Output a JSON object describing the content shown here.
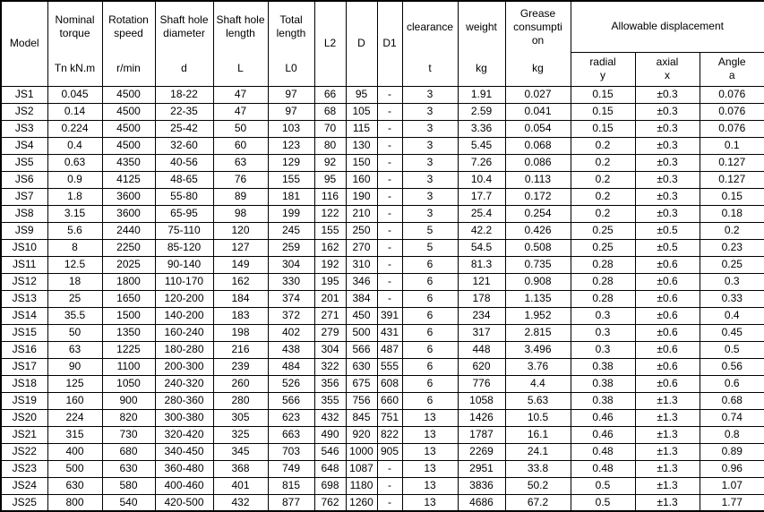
{
  "table": {
    "header": {
      "model": "Model",
      "torque": {
        "label": "Nominal\ntorque",
        "unit": "Tn kN.m"
      },
      "speed": {
        "label": "Rotation\nspeed",
        "unit": "r/min"
      },
      "diameter": {
        "label": "Shaft hole\ndiameter",
        "unit": "d"
      },
      "length": {
        "label": "Shaft hole\nlength",
        "unit": "L"
      },
      "total": {
        "label": "Total\nlength",
        "unit": "L0"
      },
      "l2": "L2",
      "d": "D",
      "d1": "D1",
      "clearance": {
        "label": "clearance",
        "unit": "t"
      },
      "weight": {
        "label": "weight",
        "unit": "kg"
      },
      "grease": {
        "label": "Grease\nconsumpti\non",
        "unit": "kg"
      },
      "displacement": "Allowable displacement",
      "radial": "radial\ny",
      "axial": "axial\nx",
      "angle": "Angle\na"
    },
    "rows": [
      [
        "JS1",
        "0.045",
        "4500",
        "18-22",
        "47",
        "97",
        "66",
        "95",
        "-",
        "3",
        "1.91",
        "0.027",
        "0.15",
        "±0.3",
        "0.076"
      ],
      [
        "JS2",
        "0.14",
        "4500",
        "22-35",
        "47",
        "97",
        "68",
        "105",
        "-",
        "3",
        "2.59",
        "0.041",
        "0.15",
        "±0.3",
        "0.076"
      ],
      [
        "JS3",
        "0.224",
        "4500",
        "25-42",
        "50",
        "103",
        "70",
        "115",
        "-",
        "3",
        "3.36",
        "0.054",
        "0.15",
        "±0.3",
        "0.076"
      ],
      [
        "JS4",
        "0.4",
        "4500",
        "32-60",
        "60",
        "123",
        "80",
        "130",
        "-",
        "3",
        "5.45",
        "0.068",
        "0.2",
        "±0.3",
        "0.1"
      ],
      [
        "JS5",
        "0.63",
        "4350",
        "40-56",
        "63",
        "129",
        "92",
        "150",
        "-",
        "3",
        "7.26",
        "0.086",
        "0.2",
        "±0.3",
        "0.127"
      ],
      [
        "JS6",
        "0.9",
        "4125",
        "48-65",
        "76",
        "155",
        "95",
        "160",
        "-",
        "3",
        "10.4",
        "0.113",
        "0.2",
        "±0.3",
        "0.127"
      ],
      [
        "JS7",
        "1.8",
        "3600",
        "55-80",
        "89",
        "181",
        "116",
        "190",
        "-",
        "3",
        "17.7",
        "0.172",
        "0.2",
        "±0.3",
        "0.15"
      ],
      [
        "JS8",
        "3.15",
        "3600",
        "65-95",
        "98",
        "199",
        "122",
        "210",
        "-",
        "3",
        "25.4",
        "0.254",
        "0.2",
        "±0.3",
        "0.18"
      ],
      [
        "JS9",
        "5.6",
        "2440",
        "75-110",
        "120",
        "245",
        "155",
        "250",
        "-",
        "5",
        "42.2",
        "0.426",
        "0.25",
        "±0.5",
        "0.2"
      ],
      [
        "JS10",
        "8",
        "2250",
        "85-120",
        "127",
        "259",
        "162",
        "270",
        "-",
        "5",
        "54.5",
        "0.508",
        "0.25",
        "±0.5",
        "0.23"
      ],
      [
        "JS11",
        "12.5",
        "2025",
        "90-140",
        "149",
        "304",
        "192",
        "310",
        "-",
        "6",
        "81.3",
        "0.735",
        "0.28",
        "±0.6",
        "0.25"
      ],
      [
        "JS12",
        "18",
        "1800",
        "110-170",
        "162",
        "330",
        "195",
        "346",
        "-",
        "6",
        "121",
        "0.908",
        "0.28",
        "±0.6",
        "0.3"
      ],
      [
        "JS13",
        "25",
        "1650",
        "120-200",
        "184",
        "374",
        "201",
        "384",
        "-",
        "6",
        "178",
        "1.135",
        "0.28",
        "±0.6",
        "0.33"
      ],
      [
        "JS14",
        "35.5",
        "1500",
        "140-200",
        "183",
        "372",
        "271",
        "450",
        "391",
        "6",
        "234",
        "1.952",
        "0.3",
        "±0.6",
        "0.4"
      ],
      [
        "JS15",
        "50",
        "1350",
        "160-240",
        "198",
        "402",
        "279",
        "500",
        "431",
        "6",
        "317",
        "2.815",
        "0.3",
        "±0.6",
        "0.45"
      ],
      [
        "JS16",
        "63",
        "1225",
        "180-280",
        "216",
        "438",
        "304",
        "566",
        "487",
        "6",
        "448",
        "3.496",
        "0.3",
        "±0.6",
        "0.5"
      ],
      [
        "JS17",
        "90",
        "1100",
        "200-300",
        "239",
        "484",
        "322",
        "630",
        "555",
        "6",
        "620",
        "3.76",
        "0.38",
        "±0.6",
        "0.56"
      ],
      [
        "JS18",
        "125",
        "1050",
        "240-320",
        "260",
        "526",
        "356",
        "675",
        "608",
        "6",
        "776",
        "4.4",
        "0.38",
        "±0.6",
        "0.6"
      ],
      [
        "JS19",
        "160",
        "900",
        "280-360",
        "280",
        "566",
        "355",
        "756",
        "660",
        "6",
        "1058",
        "5.63",
        "0.38",
        "±1.3",
        "0.68"
      ],
      [
        "JS20",
        "224",
        "820",
        "300-380",
        "305",
        "623",
        "432",
        "845",
        "751",
        "13",
        "1426",
        "10.5",
        "0.46",
        "±1.3",
        "0.74"
      ],
      [
        "JS21",
        "315",
        "730",
        "320-420",
        "325",
        "663",
        "490",
        "920",
        "822",
        "13",
        "1787",
        "16.1",
        "0.46",
        "±1.3",
        "0.8"
      ],
      [
        "JS22",
        "400",
        "680",
        "340-450",
        "345",
        "703",
        "546",
        "1000",
        "905",
        "13",
        "2269",
        "24.1",
        "0.48",
        "±1.3",
        "0.89"
      ],
      [
        "JS23",
        "500",
        "630",
        "360-480",
        "368",
        "749",
        "648",
        "1087",
        "-",
        "13",
        "2951",
        "33.8",
        "0.48",
        "±1.3",
        "0.96"
      ],
      [
        "JS24",
        "630",
        "580",
        "400-460",
        "401",
        "815",
        "698",
        "1180",
        "-",
        "13",
        "3836",
        "50.2",
        "0.5",
        "±1.3",
        "1.07"
      ],
      [
        "JS25",
        "800",
        "540",
        "420-500",
        "432",
        "877",
        "762",
        "1260",
        "-",
        "13",
        "4686",
        "67.2",
        "0.5",
        "±1.3",
        "1.77"
      ]
    ]
  }
}
